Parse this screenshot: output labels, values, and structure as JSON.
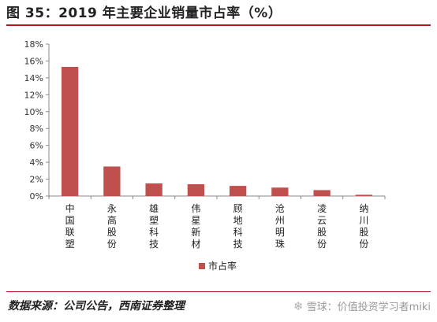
{
  "header": {
    "title": "图 35：2019 年主要企业销量市占率（%）"
  },
  "footer": {
    "source": "数据来源：公司公告，西南证券整理",
    "watermark": "雪球：价值投资学习者miki"
  },
  "colors": {
    "bar": "#c0504d",
    "rule": "#b4141e"
  },
  "chart_data": {
    "type": "bar",
    "categories": [
      "中国联塑",
      "永高股份",
      "雄塑科技",
      "伟星新材",
      "顾地科技",
      "沧州明珠",
      "凌云股份",
      "纳川股份"
    ],
    "series": [
      {
        "name": "市占率",
        "values": [
          15.3,
          3.5,
          1.5,
          1.4,
          1.2,
          1.0,
          0.7,
          0.15
        ]
      }
    ],
    "y_ticks": [
      "0%",
      "2%",
      "4%",
      "6%",
      "8%",
      "10%",
      "12%",
      "14%",
      "16%",
      "18%"
    ],
    "ylim": [
      0,
      18
    ],
    "grid": false,
    "legend": "bottom"
  }
}
